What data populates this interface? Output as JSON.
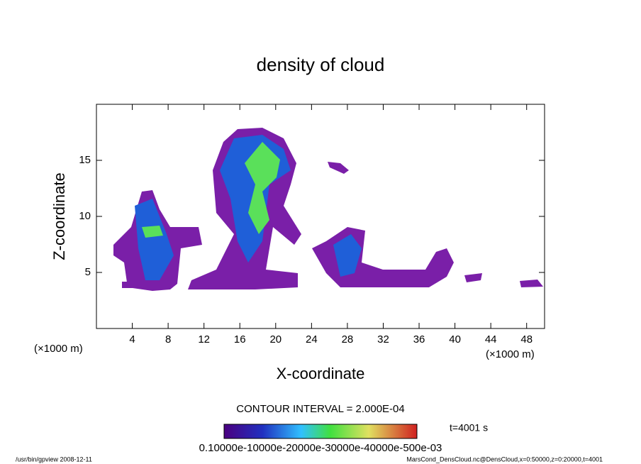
{
  "chart_data": {
    "type": "contour",
    "title": "density of cloud",
    "x_label": "X-coordinate",
    "y_label": "Z-coordinate",
    "x_unit_left": "(×1000 m)",
    "x_unit_right": "(×1000 m)",
    "contour_interval_label": "CONTOUR INTERVAL = 2.000E-04",
    "colorbar_label": "0.10000e-10000e-20000e-30000e-40000e-500e-03",
    "time_label": "t=4001 s",
    "footer_left": "/usr/bin/gpview  2008-12-11",
    "footer_right": "MarsCond_DensCloud.nc@DensCloud,x=0:50000,z=0:20000,t=4001",
    "xlim": [
      0,
      50
    ],
    "xticks": [
      4,
      8,
      12,
      16,
      20,
      24,
      28,
      32,
      36,
      40,
      44,
      48
    ],
    "ylim": [
      0,
      20
    ],
    "yticks": [
      5,
      10,
      15
    ]
  }
}
